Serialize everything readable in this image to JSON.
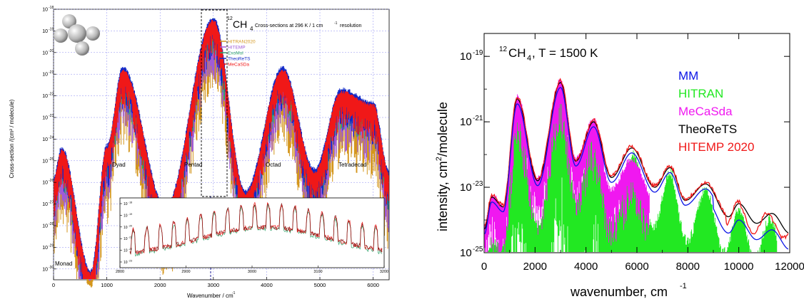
{
  "chart_data": [
    {
      "type": "line",
      "title_mol": "12",
      "title_ch": "CH",
      "title_sub": "4",
      "title": "Cross-sections at 296 K / 1 cm",
      "title_sup": "-1",
      "title_tail": " resolution",
      "xlabel": "Wavenumber / cm",
      "xlabel_sup": "-1",
      "ylabel": "Cross-section /(cm² / molecule)",
      "xlim": [
        0,
        6300
      ],
      "ylim_exp": [
        -30.5,
        -18
      ],
      "x_ticks": [
        "0",
        "1000",
        "2000",
        "3000",
        "4000",
        "5000",
        "6000"
      ],
      "y_ticks": [
        {
          "base": "10",
          "exp": "-18"
        },
        {
          "base": "10",
          "exp": "-19"
        },
        {
          "base": "10",
          "exp": "-20"
        },
        {
          "base": "10",
          "exp": "-21"
        },
        {
          "base": "10",
          "exp": "-22"
        },
        {
          "base": "10",
          "exp": "-23"
        },
        {
          "base": "10",
          "exp": "-24"
        },
        {
          "base": "10",
          "exp": "-25"
        },
        {
          "base": "10",
          "exp": "-26"
        },
        {
          "base": "10",
          "exp": "-27"
        },
        {
          "base": "10",
          "exp": "-28"
        },
        {
          "base": "10",
          "exp": "-29"
        },
        {
          "base": "10",
          "exp": "-30"
        }
      ],
      "grid": true,
      "legend": "top-center",
      "series": [
        {
          "name": "HITRAN2020",
          "color": "#d4961c"
        },
        {
          "name": "HITEMP",
          "color": "#a05bd6"
        },
        {
          "name": "ExoMol",
          "color": "#2ea36a"
        },
        {
          "name": "TheoReTS",
          "color": "#1028c8"
        },
        {
          "name": "MeCaSDa",
          "color": "#f01818"
        }
      ],
      "envelope_peaks": [
        {
          "x": 0,
          "y_exp": -26.0
        },
        {
          "x": 150,
          "y_exp": -24.6
        },
        {
          "x": 700,
          "y_exp": -30.3
        },
        {
          "x": 1000,
          "y_exp": -24.5
        },
        {
          "x": 1300,
          "y_exp": -20.9
        },
        {
          "x": 2100,
          "y_exp": -27.3
        },
        {
          "x": 3000,
          "y_exp": -18.6
        },
        {
          "x": 3600,
          "y_exp": -26.6
        },
        {
          "x": 4300,
          "y_exp": -20.9
        },
        {
          "x": 4900,
          "y_exp": -25.6
        },
        {
          "x": 5400,
          "y_exp": -21.9
        },
        {
          "x": 6000,
          "y_exp": -22.5
        },
        {
          "x": 6300,
          "y_exp": -25.7
        }
      ],
      "annotations": [
        "Monad",
        "Dyad",
        "Pentad",
        "Octad",
        "Tetradecad"
      ],
      "inset": {
        "xlim": [
          2800,
          3200
        ],
        "x_ticks": [
          "2800",
          "2900",
          "3000",
          "3100",
          "3200"
        ],
        "y_ticks": [
          {
            "base": "10",
            "exp": "-18"
          },
          {
            "base": "10",
            "exp": "-19"
          },
          {
            "base": "10",
            "exp": "-20"
          },
          {
            "base": "10",
            "exp": "-21"
          },
          {
            "base": "10",
            "exp": "-22"
          },
          {
            "base": "10",
            "exp": "-23"
          }
        ]
      }
    },
    {
      "type": "line",
      "title_pre": "12",
      "title_main": "CH",
      "title_sub": "4",
      "title_tail": ", T = 1500 K",
      "xlabel": "wavenumber, cm",
      "xlabel_sup": "-1",
      "ylabel_pre": "intensity, cm",
      "ylabel_sup": "2",
      "ylabel_tail": "/molecule",
      "xlim": [
        0,
        12000
      ],
      "ylim_exp": [
        -25,
        -18.3
      ],
      "x_ticks": [
        "0",
        "2000",
        "4000",
        "6000",
        "8000",
        "10000",
        "12000"
      ],
      "y_ticks": [
        {
          "base": "10",
          "exp": "-19"
        },
        {
          "base": "10",
          "exp": "-21"
        },
        {
          "base": "10",
          "exp": "-23"
        },
        {
          "base": "10",
          "exp": "-25"
        }
      ],
      "legend": "right",
      "series": [
        {
          "name": "MM",
          "color": "#0a14e6"
        },
        {
          "name": "HITRAN",
          "color": "#22e822"
        },
        {
          "name": "MeCaSda",
          "color": "#f018f0"
        },
        {
          "name": "TheoReTS",
          "color": "#000000"
        },
        {
          "name": "HITEMP 2020",
          "color": "#f01818"
        }
      ],
      "envelope_peaks": [
        {
          "x": 0,
          "y_exp": -24.3
        },
        {
          "x": 300,
          "y_exp": -23.3
        },
        {
          "x": 750,
          "y_exp": -23.6
        },
        {
          "x": 1300,
          "y_exp": -20.3
        },
        {
          "x": 2100,
          "y_exp": -22.8
        },
        {
          "x": 3000,
          "y_exp": -19.8
        },
        {
          "x": 3600,
          "y_exp": -22.2
        },
        {
          "x": 4300,
          "y_exp": -21.0
        },
        {
          "x": 5000,
          "y_exp": -22.7
        },
        {
          "x": 5800,
          "y_exp": -21.8
        },
        {
          "x": 6700,
          "y_exp": -23.0
        },
        {
          "x": 7300,
          "y_exp": -22.4
        },
        {
          "x": 7900,
          "y_exp": -23.4
        },
        {
          "x": 8700,
          "y_exp": -22.9
        },
        {
          "x": 9600,
          "y_exp": -23.9
        },
        {
          "x": 10000,
          "y_exp": -23.5
        },
        {
          "x": 10700,
          "y_exp": -24.1
        },
        {
          "x": 11300,
          "y_exp": -23.8
        },
        {
          "x": 12000,
          "y_exp": -24.4
        }
      ]
    }
  ]
}
